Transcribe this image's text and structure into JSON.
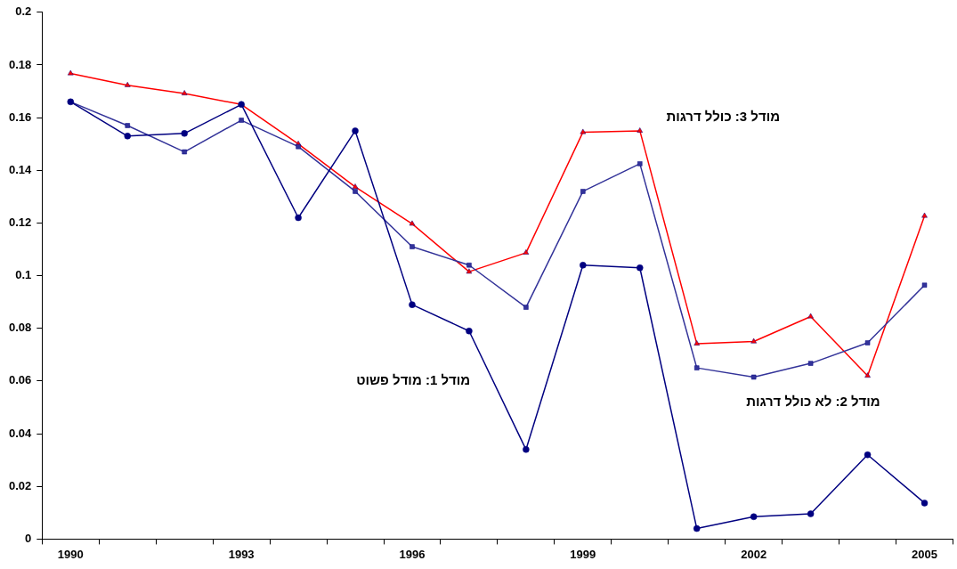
{
  "chart_data": {
    "type": "line",
    "categories": [
      "1990",
      null,
      null,
      "1993",
      null,
      null,
      "1996",
      null,
      null,
      "1999",
      null,
      null,
      "2002",
      null,
      null,
      "2005"
    ],
    "series": [
      {
        "name": "מודל 1: מודל פשוט",
        "color": "#000080",
        "marker": "circle",
        "values": [
          0.166,
          0.153,
          0.154,
          0.165,
          0.122,
          0.155,
          0.089,
          0.079,
          0.034,
          0.104,
          0.103,
          0.004,
          0.0085,
          0.0096,
          0.032,
          0.0137
        ]
      },
      {
        "name": "מודל 2: לא כולל דרגות",
        "color": "#333399",
        "marker": "square",
        "values": [
          0.166,
          0.157,
          0.147,
          0.159,
          0.149,
          0.132,
          0.111,
          0.104,
          0.088,
          0.132,
          0.1425,
          0.065,
          0.0615,
          0.0667,
          0.0745,
          0.0964
        ]
      },
      {
        "name": "מודל 3: כולל דרגות",
        "color": "#ff0000",
        "marker": "triangle",
        "values": [
          0.1768,
          0.1723,
          0.1692,
          0.165,
          0.15,
          0.1337,
          0.1197,
          0.1015,
          0.1087,
          0.1545,
          0.155,
          0.0742,
          0.075,
          0.0845,
          0.062,
          0.1227
        ]
      }
    ],
    "ylim": [
      0,
      0.2
    ],
    "yticks": [
      0,
      0.02,
      0.04,
      0.06,
      0.08,
      0.1,
      0.12,
      0.14,
      0.16,
      0.18,
      0.2
    ],
    "grid": false,
    "legend": false
  }
}
